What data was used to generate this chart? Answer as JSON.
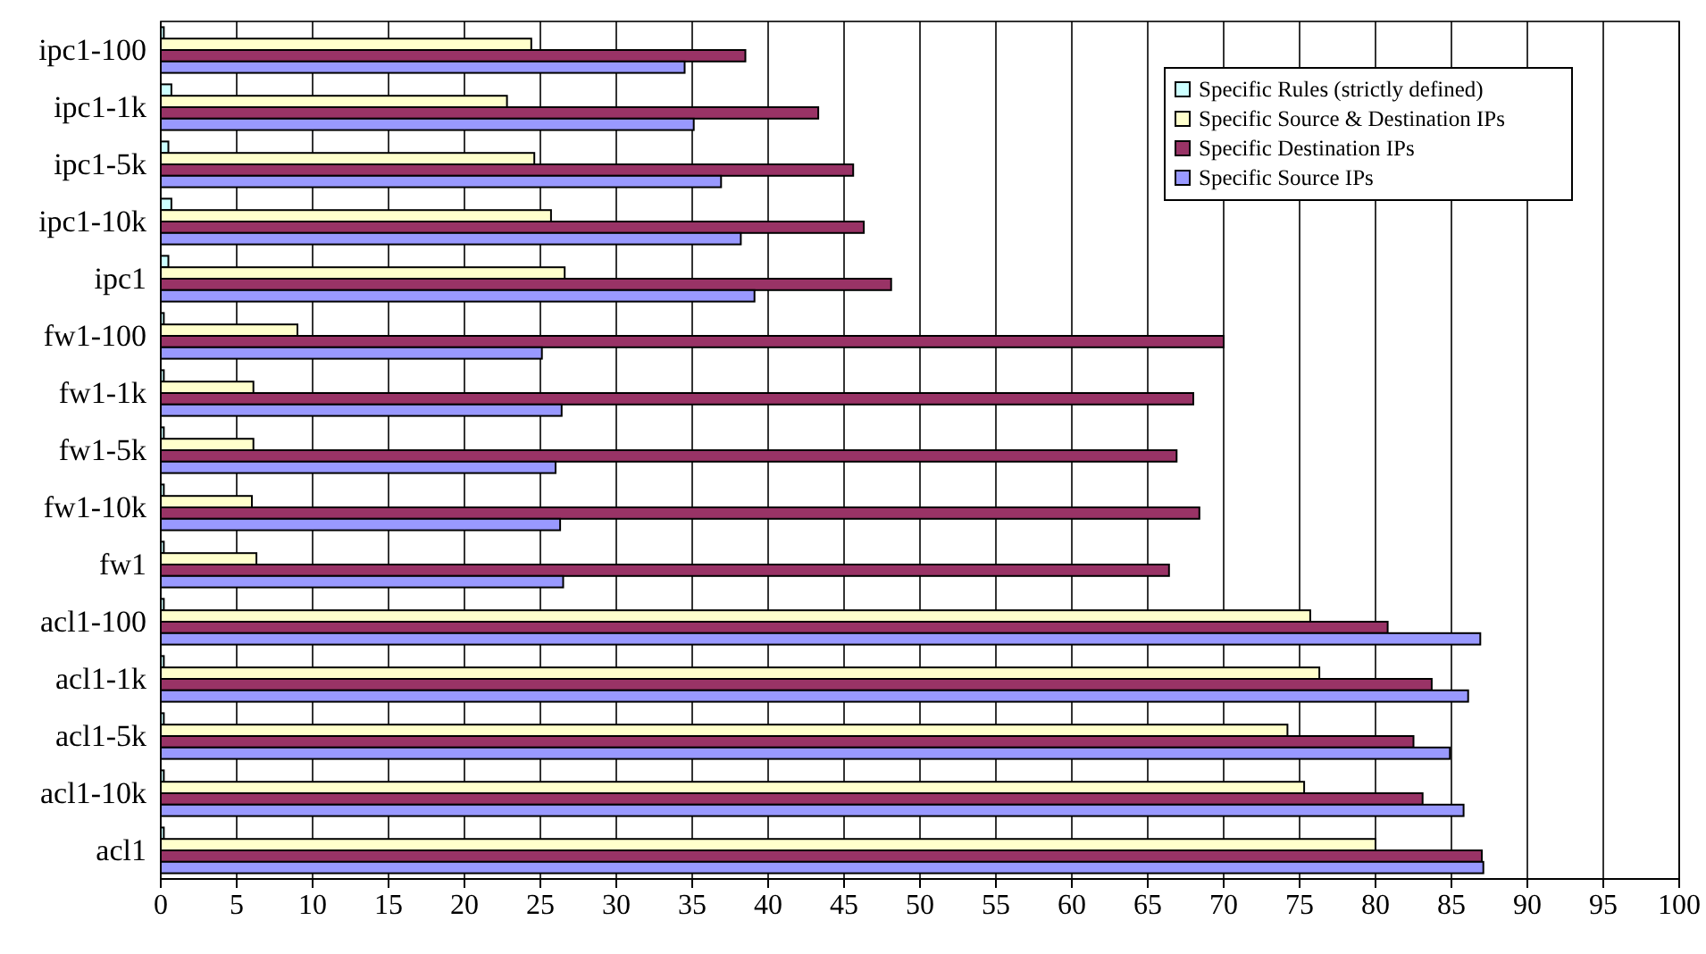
{
  "chart_data": {
    "type": "bar",
    "orientation": "horizontal",
    "categories": [
      "ipc1-100",
      "ipc1-1k",
      "ipc1-5k",
      "ipc1-10k",
      "ipc1",
      "fw1-100",
      "fw1-1k",
      "fw1-5k",
      "fw1-10k",
      "fw1",
      "acl1-100",
      "acl1-1k",
      "acl1-5k",
      "acl1-10k",
      "acl1"
    ],
    "series": [
      {
        "name": "Specific Rules (strictly defined)",
        "color": "#ccffff",
        "values": [
          0.2,
          0.7,
          0.5,
          0.7,
          0.5,
          0.2,
          0.2,
          0.2,
          0.2,
          0.2,
          0.2,
          0.2,
          0.2,
          0.2,
          0.2
        ]
      },
      {
        "name": "Specific Source & Destination IPs",
        "color": "#ffffcc",
        "values": [
          24.4,
          22.8,
          24.6,
          25.7,
          26.6,
          9.0,
          6.1,
          6.1,
          6.0,
          6.3,
          75.7,
          76.3,
          74.2,
          75.3,
          80.0
        ]
      },
      {
        "name": "Specific Destination IPs",
        "color": "#993366",
        "values": [
          38.5,
          43.3,
          45.6,
          46.3,
          48.1,
          70.0,
          68.0,
          66.9,
          68.4,
          66.4,
          80.8,
          83.7,
          82.5,
          83.1,
          87.0
        ]
      },
      {
        "name": "Specific Source IPs",
        "color": "#9999ff",
        "values": [
          34.5,
          35.1,
          36.9,
          38.2,
          39.1,
          25.1,
          26.4,
          26.0,
          26.3,
          26.5,
          86.9,
          86.1,
          84.9,
          85.8,
          87.1
        ]
      }
    ],
    "xlim": [
      0,
      100
    ],
    "xticks": [
      0,
      5,
      10,
      15,
      20,
      25,
      30,
      35,
      40,
      45,
      50,
      55,
      60,
      65,
      70,
      75,
      80,
      85,
      90,
      95,
      100
    ],
    "grid": "x",
    "legend": "top right"
  }
}
